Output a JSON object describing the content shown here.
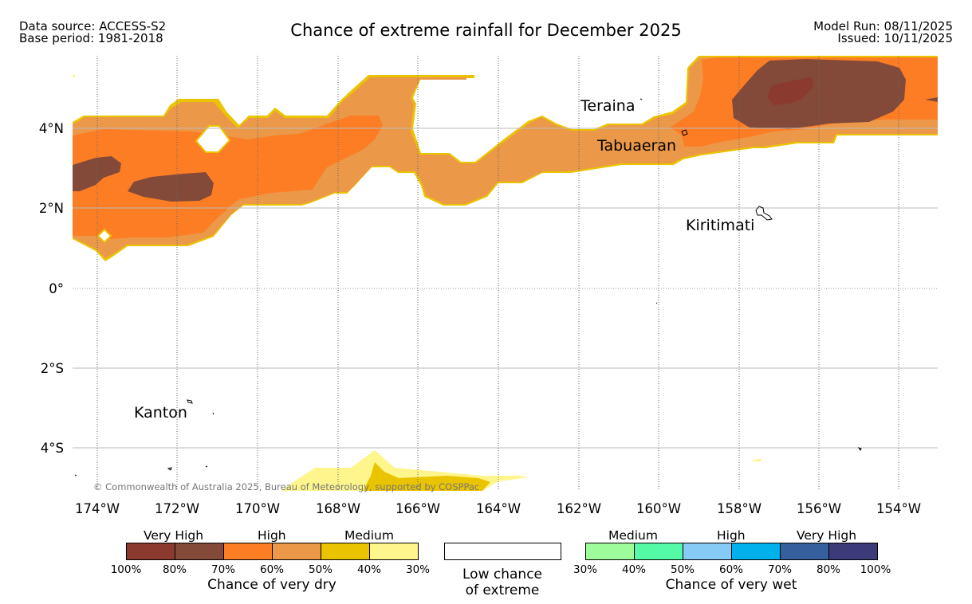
{
  "header": {
    "data_source": "Data source: ACCESS-S2",
    "base_period": "Base period: 1981-2018",
    "title": "Chance of extreme rainfall for December 2025",
    "model_run": "Model Run: 08/11/2025",
    "issued": "Issued: 10/11/2025"
  },
  "map": {
    "lat_labels": [
      "4°N",
      "2°N",
      "0°",
      "2°S",
      "4°S"
    ],
    "lon_labels": [
      "174°W",
      "172°W",
      "170°W",
      "168°W",
      "166°W",
      "164°W",
      "162°W",
      "160°W",
      "158°W",
      "156°W",
      "154°W"
    ],
    "places": {
      "teraina": "Teraina",
      "tabuaeran": "Tabuaeran",
      "kiritimati": "Kiritimati",
      "kanton": "Kanton"
    },
    "copyright": "© Commonwealth of Australia 2025, Bureau of Meteorology, supported by COSPPac"
  },
  "legend": {
    "dry": {
      "title": "Chance of very dry",
      "groups": [
        "Very High",
        "High",
        "Medium"
      ],
      "ticks": [
        "100%",
        "80%",
        "70%",
        "60%",
        "50%",
        "40%",
        "30%"
      ],
      "colors": [
        "#8b3a2f",
        "#834a39",
        "#fd7d24",
        "#eb9848",
        "#ebc400",
        "#fef58c"
      ]
    },
    "low": {
      "line1": "Low chance",
      "line2": "of extreme"
    },
    "wet": {
      "title": "Chance of very wet",
      "groups": [
        "Medium",
        "High",
        "Very High"
      ],
      "ticks": [
        "30%",
        "40%",
        "50%",
        "60%",
        "70%",
        "80%",
        "100%"
      ],
      "colors": [
        "#9ffc9a",
        "#55faa6",
        "#86caf6",
        "#00b1ec",
        "#355f9d",
        "#3c3a78"
      ]
    }
  }
}
